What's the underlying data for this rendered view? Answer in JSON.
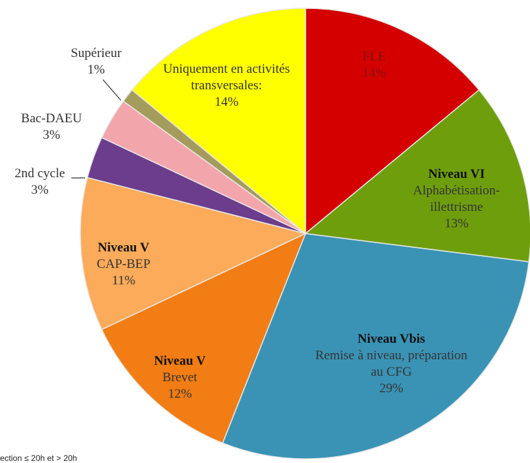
{
  "chart_data": {
    "type": "pie",
    "categories": [
      "FLE",
      "Alphabétisation-illettrisme",
      "Remise à niveau, préparation au CFG",
      "Brevet",
      "CAP-BEP",
      "2nd cycle",
      "Bac-DAEU",
      "Supérieur",
      "Uniquement en activités transversales:"
    ],
    "levels": [
      null,
      "Niveau VI",
      "Niveau Vbis",
      "Niveau V",
      "Niveau V",
      null,
      null,
      null,
      null
    ],
    "values": [
      14,
      13,
      29,
      12,
      11,
      3,
      3,
      1,
      14
    ],
    "value_labels": [
      "14%",
      "13%",
      "29%",
      "12%",
      "11%",
      "3%",
      "3%",
      "1%",
      "14%"
    ],
    "colors": [
      "#d40000",
      "#6f9e0c",
      "#3a93b5",
      "#f27d14",
      "#fbab5a",
      "#6b3d8c",
      "#f2a6ab",
      "#a39c5c",
      "#ffff00"
    ],
    "note": "ection ≤ 20h et > 20h"
  }
}
